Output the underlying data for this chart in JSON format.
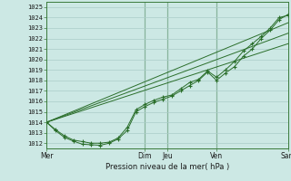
{
  "title": "Pression niveau de la mer( hPa )",
  "ylabel_values": [
    1012,
    1013,
    1014,
    1015,
    1016,
    1017,
    1018,
    1019,
    1020,
    1021,
    1022,
    1023,
    1024,
    1025
  ],
  "ylim": [
    1011.5,
    1025.5
  ],
  "bg_color": "#cce8e4",
  "grid_color": "#aaccc8",
  "line_color": "#2a6e2a",
  "series1_marked": [
    [
      0,
      1014.0
    ],
    [
      1,
      1013.3
    ],
    [
      2,
      1012.7
    ],
    [
      3,
      1012.3
    ],
    [
      4,
      1012.15
    ],
    [
      5,
      1012.0
    ],
    [
      6,
      1012.0
    ],
    [
      7,
      1012.1
    ],
    [
      8,
      1012.5
    ],
    [
      9,
      1013.5
    ],
    [
      10,
      1015.2
    ],
    [
      11,
      1015.7
    ],
    [
      12,
      1016.1
    ],
    [
      13,
      1016.4
    ],
    [
      14,
      1016.6
    ],
    [
      15,
      1017.2
    ],
    [
      16,
      1017.8
    ],
    [
      17,
      1018.1
    ],
    [
      18,
      1018.9
    ],
    [
      19,
      1018.3
    ],
    [
      20,
      1019.0
    ],
    [
      21,
      1019.8
    ],
    [
      22,
      1020.8
    ],
    [
      23,
      1021.5
    ],
    [
      24,
      1022.2
    ],
    [
      25,
      1023.0
    ],
    [
      26,
      1024.0
    ],
    [
      27,
      1024.2
    ]
  ],
  "series2_marked": [
    [
      0,
      1014.0
    ],
    [
      1,
      1013.2
    ],
    [
      2,
      1012.55
    ],
    [
      3,
      1012.2
    ],
    [
      4,
      1011.9
    ],
    [
      5,
      1011.85
    ],
    [
      6,
      1011.8
    ],
    [
      7,
      1012.0
    ],
    [
      8,
      1012.4
    ],
    [
      9,
      1013.2
    ],
    [
      10,
      1015.0
    ],
    [
      11,
      1015.5
    ],
    [
      12,
      1015.9
    ],
    [
      13,
      1016.2
    ],
    [
      14,
      1016.5
    ],
    [
      15,
      1017.0
    ],
    [
      16,
      1017.5
    ],
    [
      17,
      1018.0
    ],
    [
      18,
      1018.8
    ],
    [
      19,
      1018.0
    ],
    [
      20,
      1018.7
    ],
    [
      21,
      1019.3
    ],
    [
      22,
      1020.3
    ],
    [
      23,
      1021.0
    ],
    [
      24,
      1022.0
    ],
    [
      25,
      1022.8
    ],
    [
      26,
      1023.8
    ],
    [
      27,
      1024.3
    ]
  ],
  "series3_line": [
    [
      0,
      1014.0
    ],
    [
      27,
      1021.5
    ]
  ],
  "series4_line": [
    [
      0,
      1014.0
    ],
    [
      27,
      1022.5
    ]
  ],
  "series5_line": [
    [
      0,
      1014.0
    ],
    [
      27,
      1023.5
    ]
  ],
  "xlim": [
    0,
    27
  ],
  "xtick_positions": [
    0,
    11,
    13.5,
    19,
    27
  ],
  "xtick_labels": [
    "Mer",
    "Dim",
    "Jeu",
    "Ven",
    "Sam"
  ],
  "vline_positions": [
    11,
    13.5,
    19
  ]
}
